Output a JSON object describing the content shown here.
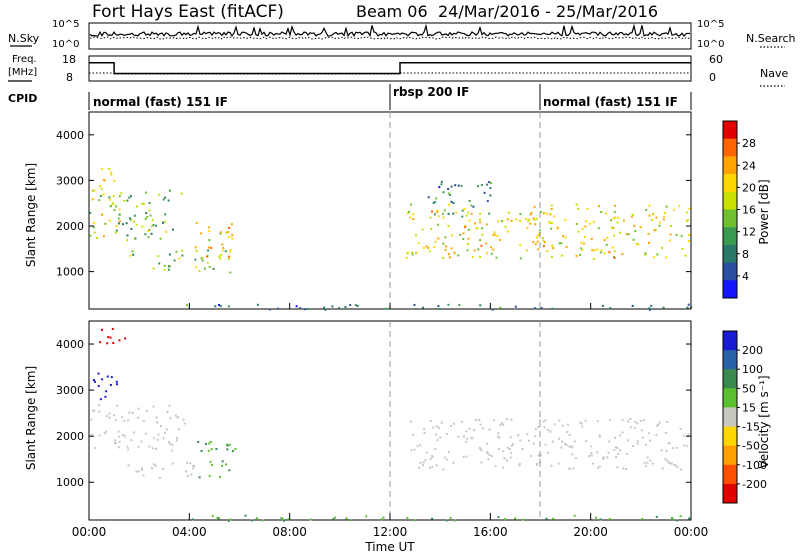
{
  "header": {
    "title": "Fort Hays East (fitACF)",
    "beam": "Beam 06",
    "dates": "24/Mar/2016 - 25/Mar/2016"
  },
  "top_panel": {
    "left_label": "N.Sky",
    "left_ticks": [
      "10^5",
      "10^0"
    ],
    "right_label": "N.Search",
    "right_ticks": [
      "10^5",
      "10^0"
    ]
  },
  "freq_panel": {
    "left_label_1": "Freq.",
    "left_label_2": "[MHz]",
    "left_ticks": [
      "18",
      "8"
    ],
    "right_label": "Nave",
    "right_ticks": [
      "60",
      "0"
    ]
  },
  "cpid": {
    "label": "CPID",
    "segments": [
      {
        "label": "normal (fast) 151 IF",
        "start_h": 0
      },
      {
        "label": "rbsp 200 IF",
        "start_h": 12
      },
      {
        "label": "normal (fast) 151 IF",
        "start_h": 18
      }
    ]
  },
  "power_panel": {
    "ylabel": "Slant Range [km]",
    "colorbar_label": "Power [dB]",
    "colorbar_ticks": [
      "28",
      "24",
      "20",
      "16",
      "12",
      "8",
      "4"
    ],
    "colorbar_colors": [
      "#e00000",
      "#ff6600",
      "#ffa500",
      "#ffd700",
      "#c8e000",
      "#70c030",
      "#3a9a50",
      "#2a7868",
      "#2a4ea0",
      "#1515ff"
    ]
  },
  "velocity_panel": {
    "ylabel": "Slant Range [km]",
    "colorbar_label": "Velocity [m s⁻¹]",
    "colorbar_ticks": [
      "200",
      "100",
      "50",
      "15",
      "-15",
      "-50",
      "-100",
      "-200"
    ],
    "colorbar_colors": [
      "#1a1ad0",
      "#2a60a8",
      "#3a8a50",
      "#5ac030",
      "#c8c8c0",
      "#ffd700",
      "#ffa000",
      "#ff5000",
      "#e00000"
    ]
  },
  "x_axis": {
    "label": "Time UT",
    "ticks": [
      "00:00",
      "04:00",
      "08:00",
      "12:00",
      "16:00",
      "20:00",
      "00:00"
    ]
  },
  "chart_data": [
    {
      "type": "line",
      "title": "Fort Hays East (fitACF)",
      "ylabel": "Freq. [MHz]",
      "xlabel": "Time UT",
      "xlim_hours": [
        0,
        24
      ],
      "ylim": [
        8,
        18
      ],
      "series": [
        {
          "name": "Freq.",
          "x": [
            0,
            1,
            1,
            11.6,
            11.6,
            12.4,
            12.4,
            24
          ],
          "y": [
            15.3,
            15.3,
            11.0,
            11.0,
            11.0,
            11.0,
            15.3,
            15.3
          ]
        }
      ]
    },
    {
      "type": "heatmap",
      "ylabel": "Slant Range [km]",
      "xlabel": "Time UT",
      "colorbar": "Power [dB]",
      "xlim_hours": [
        0,
        24
      ],
      "ylim_km": [
        180,
        4500
      ],
      "regions": [
        {
          "t0": 0.0,
          "t1": 1.2,
          "r0": 1700,
          "r1": 3400,
          "power_db": 18
        },
        {
          "t0": 0.9,
          "t1": 3.7,
          "r0": 1700,
          "r1": 2800,
          "power_db": 14
        },
        {
          "t0": 1.6,
          "t1": 5.7,
          "r0": 1000,
          "r1": 1500,
          "power_db": 16
        },
        {
          "t0": 4.2,
          "t1": 5.8,
          "r0": 1300,
          "r1": 2100,
          "power_db": 22
        },
        {
          "t0": 12.6,
          "t1": 23.9,
          "r0": 1300,
          "r1": 2500,
          "power_db": 20
        },
        {
          "t0": 13.5,
          "t1": 16.0,
          "r0": 2200,
          "r1": 3000,
          "power_db": 10
        },
        {
          "t0": 3.6,
          "t1": 24.0,
          "r0": 180,
          "r1": 300,
          "power_db": 10
        }
      ]
    },
    {
      "type": "heatmap",
      "ylabel": "Slant Range [km]",
      "xlabel": "Time UT",
      "colorbar": "Velocity [m s-1]",
      "xlim_hours": [
        0,
        24
      ],
      "ylim_km": [
        180,
        4500
      ],
      "regions": [
        {
          "t0": 0.0,
          "t1": 1.2,
          "r0": 2800,
          "r1": 3400,
          "velocity": 200
        },
        {
          "t0": 0.3,
          "t1": 1.6,
          "r0": 4000,
          "r1": 4400,
          "velocity": -200
        },
        {
          "t0": 0.0,
          "t1": 3.8,
          "r0": 1700,
          "r1": 2700,
          "velocity": 0
        },
        {
          "t0": 1.4,
          "t1": 4.2,
          "r0": 1100,
          "r1": 1500,
          "velocity": 0
        },
        {
          "t0": 4.2,
          "t1": 5.8,
          "r0": 1100,
          "r1": 1900,
          "velocity": 30
        },
        {
          "t0": 12.8,
          "t1": 23.9,
          "r0": 1300,
          "r1": 2400,
          "velocity": 0
        },
        {
          "t0": 3.6,
          "t1": 24.0,
          "r0": 180,
          "r1": 300,
          "velocity": 30
        }
      ]
    }
  ]
}
